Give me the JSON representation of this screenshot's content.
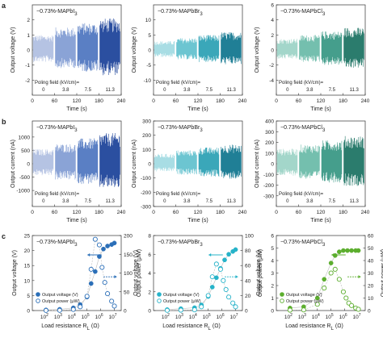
{
  "chart_data": [
    {
      "type": "line",
      "panel": "a",
      "material": "MAPbI",
      "suffix": "3",
      "ylabel": "Output voltage (V)",
      "xlabel": "Time (s)",
      "x": [
        0,
        60,
        120,
        180,
        240
      ],
      "ylim": [
        -3,
        3
      ],
      "yticks": [
        -2,
        -1,
        0,
        1,
        2
      ],
      "xticks": [
        0,
        60,
        120,
        180,
        240
      ],
      "series": [
        {
          "field": "0",
          "amplitude": 1.0
        },
        {
          "field": "3.8",
          "amplitude": 1.5
        },
        {
          "field": "7.5",
          "amplitude": 1.8
        },
        {
          "field": "11.3",
          "amplitude": 2.1
        }
      ],
      "poling_label": "Poling field (kV/cm)=",
      "poling_values": [
        "0",
        "3.8",
        "7.5",
        "11.3"
      ],
      "colors": [
        "#b5c3e3",
        "#8aa3d6",
        "#5a7fc4",
        "#2b4fa0"
      ]
    },
    {
      "type": "line",
      "panel": "a",
      "material": "MAPbBr",
      "suffix": "3",
      "ylabel": "Output voltage (V)",
      "xlabel": "Time (s)",
      "x": [
        0,
        60,
        120,
        180,
        240
      ],
      "ylim": [
        -15,
        15
      ],
      "yticks": [
        -10,
        -5,
        0,
        5,
        10
      ],
      "xticks": [
        0,
        60,
        120,
        180,
        240
      ],
      "series": [
        {
          "field": "0",
          "amplitude": 3.0
        },
        {
          "field": "3.8",
          "amplitude": 4.0
        },
        {
          "field": "7.5",
          "amplitude": 5.0
        },
        {
          "field": "11.3",
          "amplitude": 6.0
        }
      ],
      "poling_label": "Poling field (kV/cm)=",
      "poling_values": [
        "0",
        "3.8",
        "7.5",
        "11.3"
      ],
      "colors": [
        "#a8dde4",
        "#6cc5d1",
        "#3aa7b9",
        "#207f96"
      ]
    },
    {
      "type": "line",
      "panel": "a",
      "material": "MAPbCl",
      "suffix": "3",
      "ylabel": "Output voltage (V)",
      "xlabel": "Time (s)",
      "x": [
        0,
        60,
        120,
        180,
        240
      ],
      "ylim": [
        -6,
        6
      ],
      "yticks": [
        -4,
        -2,
        0,
        2,
        4,
        6
      ],
      "xticks": [
        0,
        60,
        120,
        180,
        240
      ],
      "series": [
        {
          "field": "0",
          "amplitude": 1.5
        },
        {
          "field": "3.8",
          "amplitude": 2.0
        },
        {
          "field": "7.5",
          "amplitude": 2.5
        },
        {
          "field": "11.3",
          "amplitude": 3.0
        }
      ],
      "poling_label": "Poling field (kV/cm)=",
      "poling_values": [
        "0",
        "3.8",
        "7.5",
        "11.3"
      ],
      "colors": [
        "#a3d6ca",
        "#74bfae",
        "#459e8c",
        "#2b7c6d"
      ]
    },
    {
      "type": "line",
      "panel": "b",
      "material": "MAPbI",
      "suffix": "3",
      "ylabel": "Output current (nA)",
      "xlabel": "Time (s)",
      "x": [
        0,
        60,
        120,
        180,
        240
      ],
      "ylim": [
        -1600,
        1600
      ],
      "yticks": [
        -1000,
        -500,
        0,
        500,
        1000
      ],
      "xticks": [
        0,
        60,
        120,
        180,
        240
      ],
      "series": [
        {
          "field": "0",
          "amplitude": 550
        },
        {
          "field": "3.8",
          "amplitude": 750
        },
        {
          "field": "7.5",
          "amplitude": 950
        },
        {
          "field": "11.3",
          "amplitude": 1150
        }
      ],
      "poling_label": "Poling field (kV/cm)=",
      "poling_values": [
        "0",
        "3.8",
        "7.5",
        "11.3"
      ],
      "colors": [
        "#b5c3e3",
        "#8aa3d6",
        "#5a7fc4",
        "#2b4fa0"
      ]
    },
    {
      "type": "line",
      "panel": "b",
      "material": "MAPbBr",
      "suffix": "3",
      "ylabel": "Output current (nA)",
      "xlabel": "Time (s)",
      "x": [
        0,
        60,
        120,
        180,
        240
      ],
      "ylim": [
        -300,
        300
      ],
      "yticks": [
        -300,
        -200,
        -100,
        0,
        100,
        200,
        300
      ],
      "xticks": [
        0,
        60,
        120,
        180,
        240
      ],
      "series": [
        {
          "field": "0",
          "amplitude": 70
        },
        {
          "field": "3.8",
          "amplitude": 95
        },
        {
          "field": "7.5",
          "amplitude": 115
        },
        {
          "field": "11.3",
          "amplitude": 135
        }
      ],
      "poling_label": "Poling field (kV/cm)=",
      "poling_values": [
        "0",
        "3.8",
        "7.5",
        "11.3"
      ],
      "colors": [
        "#a8dde4",
        "#6cc5d1",
        "#3aa7b9",
        "#207f96"
      ]
    },
    {
      "type": "line",
      "panel": "b",
      "material": "MAPbCl",
      "suffix": "3",
      "ylabel": "Output current (nA)",
      "xlabel": "Time (s)",
      "x": [
        0,
        60,
        120,
        180,
        240
      ],
      "ylim": [
        -400,
        400
      ],
      "yticks": [
        -300,
        -200,
        -100,
        0,
        100,
        200,
        300,
        400
      ],
      "xticks": [
        0,
        60,
        120,
        180,
        240
      ],
      "series": [
        {
          "field": "0",
          "amplitude": 140
        },
        {
          "field": "3.8",
          "amplitude": 180
        },
        {
          "field": "7.5",
          "amplitude": 220
        },
        {
          "field": "11.3",
          "amplitude": 260
        }
      ],
      "poling_label": "Poling field (kV/cm)=",
      "poling_values": [
        "0",
        "3.8",
        "7.5",
        "11.3"
      ],
      "colors": [
        "#a3d6ca",
        "#74bfae",
        "#459e8c",
        "#2b7c6d"
      ]
    },
    {
      "type": "scatter",
      "panel": "c",
      "material": "MAPbI",
      "suffix": "3",
      "ylabel": "Output voltage (V)",
      "y2label": "Output power (μW)",
      "xlabel": "Load resistance R",
      "xlabel_sub": "L",
      "xlabel_unit": " (Ω)",
      "xscale": "log",
      "xlim": [
        1,
        7.5
      ],
      "xticks": [
        2,
        3,
        4,
        5,
        6,
        7
      ],
      "ylim": [
        0,
        25
      ],
      "yticks": [
        0,
        5,
        10,
        15,
        20,
        25
      ],
      "y2lim": [
        0,
        200
      ],
      "y2ticks": [
        0,
        50,
        100,
        150,
        200
      ],
      "color": "#2b6fb8",
      "legend": [
        "Output voltage (V)",
        "Output power (μW)"
      ],
      "voltage": [
        [
          2,
          0.2
        ],
        [
          3,
          0.4
        ],
        [
          4,
          0.9
        ],
        [
          4.5,
          2
        ],
        [
          5,
          4.5
        ],
        [
          5.3,
          9
        ],
        [
          5.6,
          13
        ],
        [
          5.9,
          18
        ],
        [
          6.2,
          20.5
        ],
        [
          6.5,
          21.5
        ],
        [
          6.8,
          22
        ],
        [
          7,
          22.5
        ]
      ],
      "power": [
        [
          2,
          0.3
        ],
        [
          3,
          0.5
        ],
        [
          4,
          3
        ],
        [
          4.5,
          10
        ],
        [
          5,
          38
        ],
        [
          5.3,
          110
        ],
        [
          5.6,
          190
        ],
        [
          5.9,
          175
        ],
        [
          6.1,
          115
        ],
        [
          6.3,
          75
        ],
        [
          6.5,
          45
        ],
        [
          6.8,
          25
        ],
        [
          7,
          12
        ]
      ]
    },
    {
      "type": "scatter",
      "panel": "c",
      "material": "MAPbBr",
      "suffix": "3",
      "ylabel": "Output voltage (V)",
      "y2label": "Output power (μW)",
      "xlabel": "Load resistance R",
      "xlabel_sub": "L",
      "xlabel_unit": " (Ω)",
      "xscale": "log",
      "xlim": [
        1,
        7.5
      ],
      "xticks": [
        2,
        3,
        4,
        5,
        6,
        7
      ],
      "ylim": [
        0,
        8
      ],
      "yticks": [
        0,
        2,
        4,
        6,
        8
      ],
      "y2lim": [
        0,
        100
      ],
      "y2ticks": [
        0,
        20,
        40,
        60,
        80,
        100
      ],
      "color": "#26b3c9",
      "legend": [
        "Output voltage (V)",
        "Output power (μW)"
      ],
      "voltage": [
        [
          2,
          0.1
        ],
        [
          3,
          0.2
        ],
        [
          4,
          0.3
        ],
        [
          4.5,
          0.6
        ],
        [
          5,
          1.5
        ],
        [
          5.3,
          2.5
        ],
        [
          5.6,
          3.5
        ],
        [
          5.9,
          4.5
        ],
        [
          6.2,
          5.4
        ],
        [
          6.5,
          6
        ],
        [
          6.8,
          6.3
        ],
        [
          7,
          6.5
        ]
      ],
      "power": [
        [
          2,
          0.3
        ],
        [
          3,
          0.5
        ],
        [
          4,
          1
        ],
        [
          4.5,
          5
        ],
        [
          5,
          20
        ],
        [
          5.3,
          45
        ],
        [
          5.6,
          62
        ],
        [
          5.9,
          55
        ],
        [
          6.1,
          40
        ],
        [
          6.3,
          28
        ],
        [
          6.5,
          18
        ],
        [
          6.8,
          10
        ],
        [
          7,
          5
        ]
      ]
    },
    {
      "type": "scatter",
      "panel": "c",
      "material": "MAPbCl",
      "suffix": "3",
      "ylabel": "Output voltage (V)",
      "y2label": "Output power (μW)",
      "xlabel": "Load resistance R",
      "xlabel_sub": "L",
      "xlabel_unit": " (Ω)",
      "xscale": "log",
      "xlim": [
        1,
        7.5
      ],
      "xticks": [
        2,
        3,
        4,
        5,
        6,
        7
      ],
      "ylim": [
        0,
        6
      ],
      "yticks": [
        0,
        1,
        2,
        3,
        4,
        5,
        6
      ],
      "y2lim": [
        0,
        60
      ],
      "y2ticks": [
        0,
        10,
        20,
        30,
        40,
        50,
        60
      ],
      "color": "#5cae2e",
      "legend": [
        "Output voltage (V)",
        "Output power (μW)"
      ],
      "voltage": [
        [
          2,
          0.2
        ],
        [
          3,
          0.3
        ],
        [
          4,
          1
        ],
        [
          4.5,
          2.5
        ],
        [
          5,
          3.8
        ],
        [
          5.3,
          4.4
        ],
        [
          5.6,
          4.7
        ],
        [
          5.9,
          4.8
        ],
        [
          6.2,
          4.8
        ],
        [
          6.5,
          4.8
        ],
        [
          6.8,
          4.8
        ],
        [
          7,
          4.8
        ]
      ],
      "power": [
        [
          2,
          0.3
        ],
        [
          3,
          0.5
        ],
        [
          4,
          5
        ],
        [
          4.5,
          18
        ],
        [
          5,
          30
        ],
        [
          5.3,
          33
        ],
        [
          5.6,
          25
        ],
        [
          5.9,
          15
        ],
        [
          6.1,
          10
        ],
        [
          6.3,
          6
        ],
        [
          6.5,
          4
        ],
        [
          6.8,
          2
        ],
        [
          7,
          1
        ]
      ]
    }
  ],
  "panel_letters": [
    "a",
    "b",
    "c"
  ],
  "prefix": "−0.73%-"
}
